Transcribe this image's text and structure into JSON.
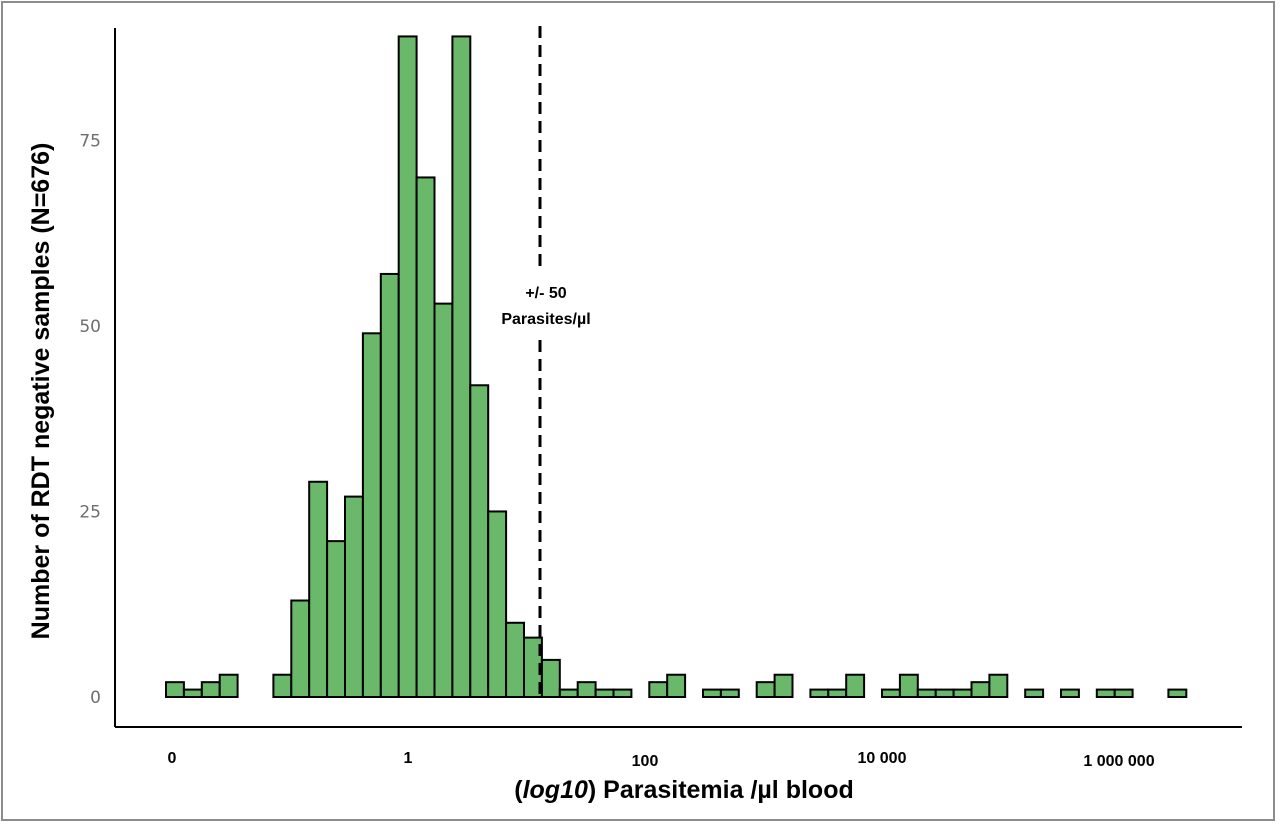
{
  "chart_data": {
    "type": "bar",
    "title": "",
    "ylabel": "Number of RDT negative samples (N=676)",
    "xlabel": {
      "open": "(",
      "log_part": "log10",
      "rest": ") Parasitemia /µl blood"
    },
    "x_scale": "log10",
    "x_tick_values": [
      0,
      1,
      100,
      10000,
      1000000
    ],
    "x_tick_labels": [
      "0",
      "1",
      "100",
      "10 000",
      "1 000 000"
    ],
    "y_ticks": [
      0,
      25,
      50,
      75
    ],
    "ylim": [
      0,
      90
    ],
    "grid": false,
    "bar_color": "#6ab96a",
    "bar_edge_color": "#000000",
    "threshold": {
      "value": 50,
      "label_line1": "+/- 50",
      "label_line2": "Parasites/µl"
    },
    "values": [
      2,
      1,
      2,
      3,
      0,
      0,
      3,
      13,
      29,
      21,
      27,
      49,
      57,
      89,
      70,
      53,
      89,
      42,
      25,
      10,
      8,
      5,
      1,
      2,
      1,
      1,
      0,
      2,
      3,
      0,
      1,
      1,
      0,
      2,
      3,
      0,
      1,
      1,
      3,
      0,
      1,
      3,
      1,
      1,
      1,
      2,
      3,
      0,
      1,
      0,
      1,
      0,
      1,
      1,
      0,
      0,
      1
    ]
  }
}
